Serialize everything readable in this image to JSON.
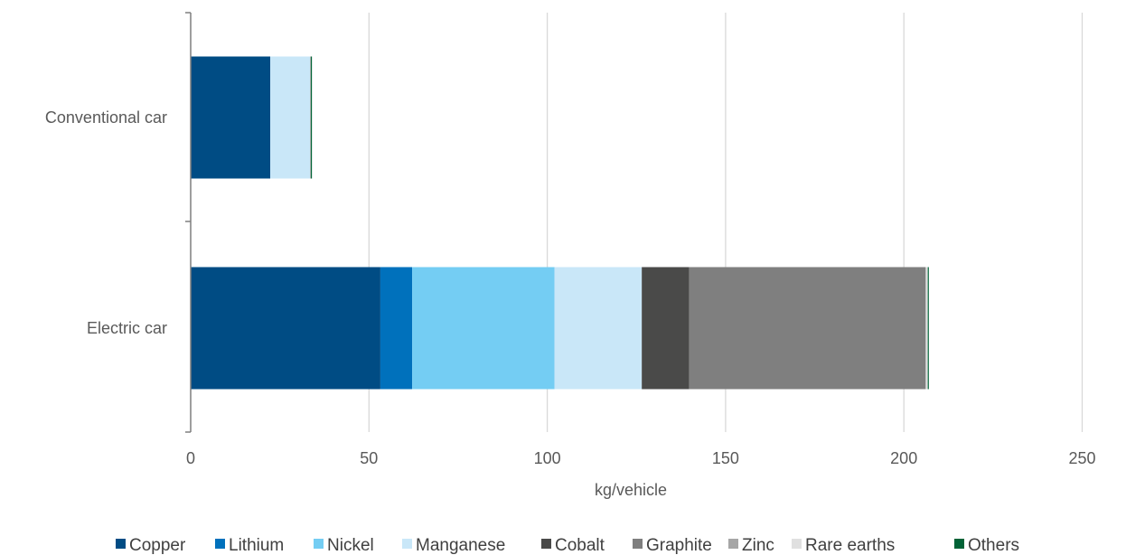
{
  "chart_data": {
    "type": "bar",
    "orientation": "horizontal",
    "stacked": true,
    "title": "",
    "xlabel": "kg/vehicle",
    "ylabel": "",
    "xlim": [
      0,
      250
    ],
    "xticks": [
      0,
      50,
      100,
      150,
      200,
      250
    ],
    "grid": "vertical",
    "legend_position": "bottom",
    "categories": [
      "Conventional car",
      "Electric car"
    ],
    "series": [
      {
        "name": "Copper",
        "color": "#004c84",
        "values": [
          22.3,
          53.2
        ]
      },
      {
        "name": "Lithium",
        "color": "#0071bc",
        "values": [
          0,
          8.9
        ]
      },
      {
        "name": "Nickel",
        "color": "#74cdf3",
        "values": [
          0,
          39.9
        ]
      },
      {
        "name": "Manganese",
        "color": "#c9e7f8",
        "values": [
          11.2,
          24.5
        ]
      },
      {
        "name": "Cobalt",
        "color": "#4a4a49",
        "values": [
          0,
          13.3
        ]
      },
      {
        "name": "Graphite",
        "color": "#7f7f7f",
        "values": [
          0,
          66.3
        ]
      },
      {
        "name": "Zinc",
        "color": "#a6a6a6",
        "values": [
          0.2,
          0.1
        ]
      },
      {
        "name": "Rare earths",
        "color": "#e0e0e0",
        "values": [
          0,
          0.5
        ]
      },
      {
        "name": "Others",
        "color": "#006236",
        "values": [
          0.3,
          0.3
        ]
      }
    ]
  }
}
